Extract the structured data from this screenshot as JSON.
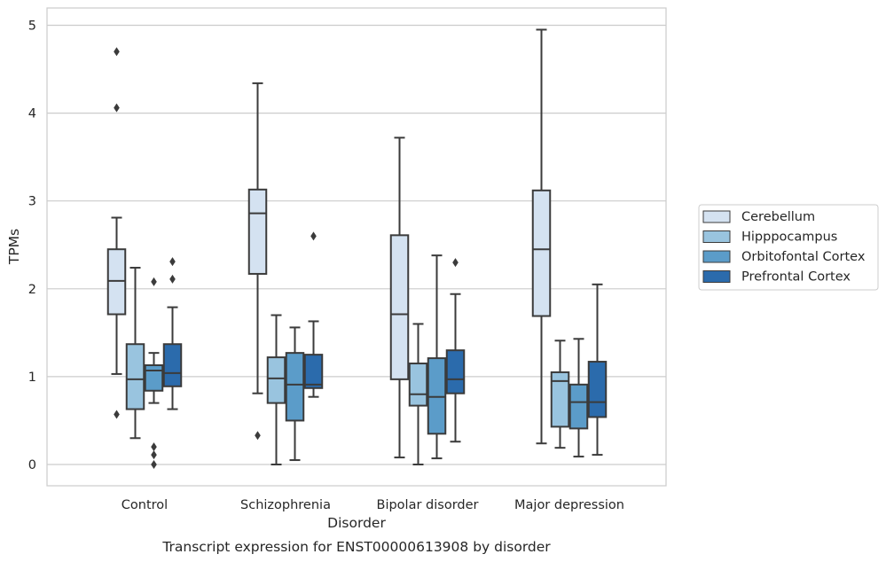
{
  "chart_data": {
    "type": "box",
    "caption": "Transcript expression for ENST00000613908 by disorder",
    "xlabel": "Disorder",
    "ylabel": "TPMs",
    "ylim": [
      -0.25,
      5.2
    ],
    "yticks": [
      0,
      1,
      2,
      3,
      4,
      5
    ],
    "grid": "horizontal",
    "legend_position": "right",
    "categories": [
      "Control",
      "Schizophrenia",
      "Bipolar disorder",
      "Major depression"
    ],
    "series": [
      {
        "name": "Cerebellum",
        "color": "#d4e2f1",
        "boxes": [
          {
            "whisker_low": 1.03,
            "q1": 1.71,
            "median": 2.09,
            "q3": 2.45,
            "whisker_high": 2.81,
            "outliers": [
              0.57,
              4.06,
              4.7
            ]
          },
          {
            "whisker_low": 0.81,
            "q1": 2.17,
            "median": 2.86,
            "q3": 3.13,
            "whisker_high": 4.34,
            "outliers": [
              0.33
            ]
          },
          {
            "whisker_low": 0.08,
            "q1": 0.97,
            "median": 1.71,
            "q3": 2.61,
            "whisker_high": 3.72,
            "outliers": []
          },
          {
            "whisker_low": 0.24,
            "q1": 1.69,
            "median": 2.45,
            "q3": 3.12,
            "whisker_high": 4.95,
            "outliers": []
          }
        ]
      },
      {
        "name": "Hipppocampus",
        "color": "#99c4df",
        "boxes": [
          {
            "whisker_low": 0.3,
            "q1": 0.63,
            "median": 0.97,
            "q3": 1.37,
            "whisker_high": 2.24,
            "outliers": []
          },
          {
            "whisker_low": 0.0,
            "q1": 0.7,
            "median": 0.98,
            "q3": 1.22,
            "whisker_high": 1.7,
            "outliers": []
          },
          {
            "whisker_low": 0.0,
            "q1": 0.67,
            "median": 0.8,
            "q3": 1.15,
            "whisker_high": 1.6,
            "outliers": []
          },
          {
            "whisker_low": 0.19,
            "q1": 0.43,
            "median": 0.95,
            "q3": 1.05,
            "whisker_high": 1.41,
            "outliers": []
          }
        ]
      },
      {
        "name": "Orbitofontal Cortex",
        "color": "#5b9cc9",
        "boxes": [
          {
            "whisker_low": 0.7,
            "q1": 0.84,
            "median": 1.07,
            "q3": 1.13,
            "whisker_high": 1.27,
            "outliers": [
              0.0,
              0.11,
              0.2,
              2.08
            ]
          },
          {
            "whisker_low": 0.05,
            "q1": 0.5,
            "median": 0.91,
            "q3": 1.27,
            "whisker_high": 1.56,
            "outliers": []
          },
          {
            "whisker_low": 0.07,
            "q1": 0.35,
            "median": 0.77,
            "q3": 1.21,
            "whisker_high": 2.38,
            "outliers": []
          },
          {
            "whisker_low": 0.09,
            "q1": 0.41,
            "median": 0.71,
            "q3": 0.91,
            "whisker_high": 1.43,
            "outliers": []
          }
        ]
      },
      {
        "name": "Prefrontal Cortex",
        "color": "#2b6bac",
        "boxes": [
          {
            "whisker_low": 0.63,
            "q1": 0.89,
            "median": 1.04,
            "q3": 1.37,
            "whisker_high": 1.79,
            "outliers": [
              2.11,
              2.31
            ]
          },
          {
            "whisker_low": 0.77,
            "q1": 0.87,
            "median": 0.91,
            "q3": 1.25,
            "whisker_high": 1.63,
            "outliers": [
              2.6
            ]
          },
          {
            "whisker_low": 0.26,
            "q1": 0.81,
            "median": 0.97,
            "q3": 1.3,
            "whisker_high": 1.94,
            "outliers": [
              2.3
            ]
          },
          {
            "whisker_low": 0.11,
            "q1": 0.54,
            "median": 0.71,
            "q3": 1.17,
            "whisker_high": 2.05,
            "outliers": []
          }
        ]
      }
    ]
  }
}
